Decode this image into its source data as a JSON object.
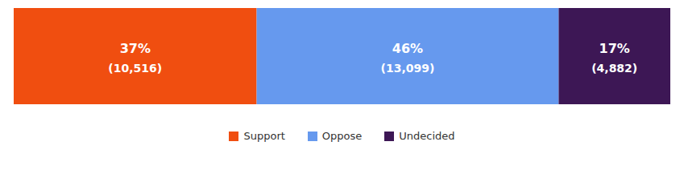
{
  "chart_data": {
    "type": "bar",
    "orientation": "horizontal",
    "stacked": true,
    "categories": [
      null
    ],
    "series": [
      {
        "name": "Support",
        "color": "#F04E10",
        "values": [
          37
        ],
        "value_labels": [
          "37%"
        ],
        "counts": [
          10516
        ],
        "count_labels": [
          "(10,516)"
        ]
      },
      {
        "name": "Oppose",
        "color": "#6699EE",
        "values": [
          46
        ],
        "value_labels": [
          "46%"
        ],
        "counts": [
          13099
        ],
        "count_labels": [
          "(13,099)"
        ]
      },
      {
        "name": "Undecided",
        "color": "#3D1755",
        "values": [
          17
        ],
        "value_labels": [
          "17%"
        ],
        "counts": [
          4882
        ],
        "count_labels": [
          "(4,882)"
        ]
      }
    ],
    "xlim": [
      0,
      100
    ],
    "data_labels": true,
    "tick_labels": false,
    "legend": "bottom"
  }
}
